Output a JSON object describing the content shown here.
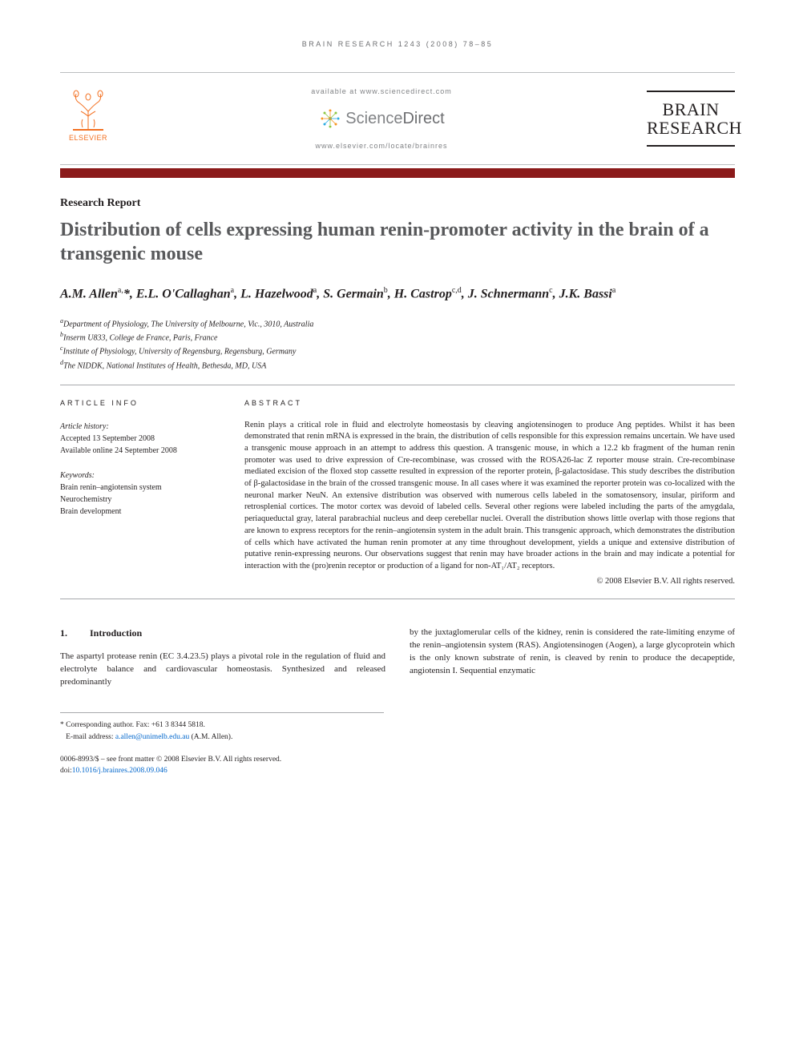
{
  "running_head": "BRAIN RESEARCH 1243 (2008) 78–85",
  "header": {
    "elsevier_label": "ELSEVIER",
    "available_text": "available at www.sciencedirect.com",
    "sciencedirect_label_light": "Science",
    "sciencedirect_label_bold": "Direct",
    "journal_url": "www.elsevier.com/locate/brainres",
    "journal_logo_line1": "BRAIN",
    "journal_logo_line2": "RESEARCH"
  },
  "colors": {
    "bar": "#8b1a1a",
    "elsevier_orange": "#f37021",
    "sd_orange": "#f7941e",
    "sd_green": "#8dc63f",
    "sd_blue": "#27aae1",
    "title_gray": "#58595b",
    "link_blue": "#0066cc"
  },
  "report_type": "Research Report",
  "title": "Distribution of cells expressing human renin-promoter activity in the brain of a transgenic mouse",
  "authors_html": "A.M. Allen<sup>a,</sup>*, E.L. O'Callaghan<sup>a</sup>, L. Hazelwood<sup>a</sup>, S. Germain<sup>b</sup>, H. Castrop<sup>c,d</sup>, J. Schnermann<sup>c</sup>, J.K. Bassi<sup>a</sup>",
  "affiliations": [
    "Department of Physiology, The University of Melbourne, Vic., 3010, Australia",
    "Inserm U833, College de France, Paris, France",
    "Institute of Physiology, University of Regensburg, Regensburg, Germany",
    "The NIDDK, National Institutes of Health, Bethesda, MD, USA"
  ],
  "aff_labels": [
    "a",
    "b",
    "c",
    "d"
  ],
  "article_info": {
    "head": "ARTICLE INFO",
    "history_label": "Article history:",
    "accepted": "Accepted 13 September 2008",
    "online": "Available online 24 September 2008",
    "keywords_label": "Keywords:",
    "keywords": [
      "Brain renin–angiotensin system",
      "Neurochemistry",
      "Brain development"
    ]
  },
  "abstract": {
    "head": "ABSTRACT",
    "text": "Renin plays a critical role in fluid and electrolyte homeostasis by cleaving angiotensinogen to produce Ang peptides. Whilst it has been demonstrated that renin mRNA is expressed in the brain, the distribution of cells responsible for this expression remains uncertain. We have used a transgenic mouse approach in an attempt to address this question. A transgenic mouse, in which a 12.2 kb fragment of the human renin promoter was used to drive expression of Cre-recombinase, was crossed with the ROSA26-lac Z reporter mouse strain. Cre-recombinase mediated excision of the floxed stop cassette resulted in expression of the reporter protein, β-galactosidase. This study describes the distribution of β-galactosidase in the brain of the crossed transgenic mouse. In all cases where it was examined the reporter protein was co-localized with the neuronal marker NeuN. An extensive distribution was observed with numerous cells labeled in the somatosensory, insular, piriform and retrosplenial cortices. The motor cortex was devoid of labeled cells. Several other regions were labeled including the parts of the amygdala, periaqueductal gray, lateral parabrachial nucleus and deep cerebellar nuclei. Overall the distribution shows little overlap with those regions that are known to express receptors for the renin–angiotensin system in the adult brain. This transgenic approach, which demonstrates the distribution of cells which have activated the human renin promoter at any time throughout development, yields a unique and extensive distribution of putative renin-expressing neurons. Our observations suggest that renin may have broader actions in the brain and may indicate a potential for interaction with the (pro)renin receptor or production of a ligand for non-AT₁/AT₂ receptors.",
    "copyright": "© 2008 Elsevier B.V. All rights reserved."
  },
  "section1": {
    "num": "1.",
    "title": "Introduction",
    "col1": "The aspartyl protease renin (EC 3.4.23.5) plays a pivotal role in the regulation of fluid and electrolyte balance and cardiovascular homeostasis. Synthesized and released predominantly",
    "col2": "by the juxtaglomerular cells of the kidney, renin is considered the rate-limiting enzyme of the renin–angiotensin system (RAS). Angiotensinogen (Aogen), a large glycoprotein which is the only known substrate of renin, is cleaved by renin to produce the decapeptide, angiotensin I. Sequential enzymatic"
  },
  "footnotes": {
    "corresponding": "* Corresponding author. Fax: +61 3 8344 5818.",
    "email_label": "E-mail address:",
    "email": "a.allen@unimelb.edu.au",
    "email_suffix": "(A.M. Allen)."
  },
  "footer": {
    "line1": "0006-8993/$ – see front matter © 2008 Elsevier B.V. All rights reserved.",
    "doi_label": "doi:",
    "doi": "10.1016/j.brainres.2008.09.046"
  }
}
